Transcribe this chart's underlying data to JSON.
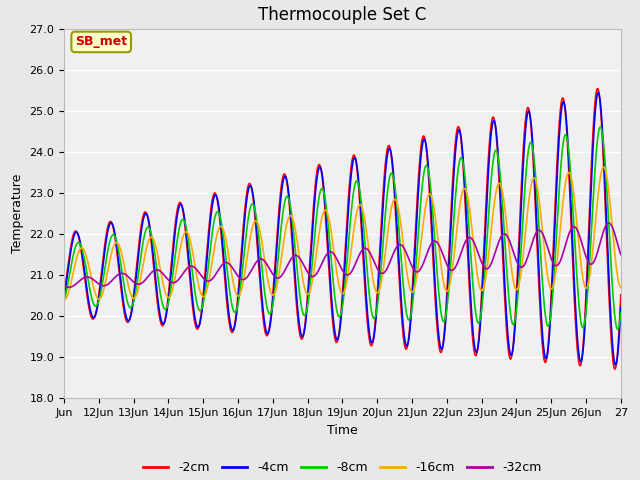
{
  "title": "Thermocouple Set C",
  "xlabel": "Time",
  "ylabel": "Temperature",
  "annotation": "SB_met",
  "annotation_color": "#cc0000",
  "annotation_bg": "#ffffcc",
  "annotation_border": "#999900",
  "ylim": [
    18.0,
    27.0
  ],
  "yticks": [
    18.0,
    19.0,
    20.0,
    21.0,
    22.0,
    23.0,
    24.0,
    25.0,
    26.0,
    27.0
  ],
  "xtick_labels": [
    "Jun",
    "12Jun",
    "13Jun",
    "14Jun",
    "15Jun",
    "16Jun",
    "17Jun",
    "18Jun",
    "19Jun",
    "20Jun",
    "21Jun",
    "22Jun",
    "23Jun",
    "24Jun",
    "25Jun",
    "26Jun",
    "27"
  ],
  "series_colors": [
    "#ff0000",
    "#0000ff",
    "#00cc00",
    "#ffaa00",
    "#aa00aa"
  ],
  "series_labels": [
    "-2cm",
    "-4cm",
    "-8cm",
    "-16cm",
    "-32cm"
  ],
  "bg_color": "#e8e8e8",
  "plot_bg_color": "#f0f0f0",
  "grid_color": "#ffffff",
  "title_fontsize": 12,
  "label_fontsize": 9,
  "tick_fontsize": 8
}
